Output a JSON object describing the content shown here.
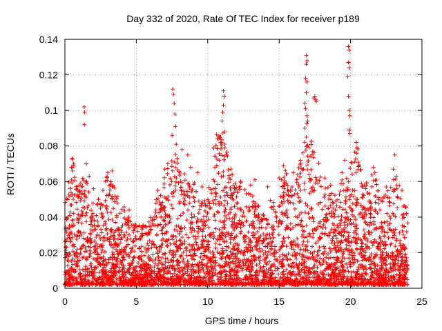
{
  "chart_data": {
    "type": "scatter",
    "title": "Day 332 of 2020, Rate Of TEC Index for receiver p189",
    "xlabel": "GPS time / hours",
    "ylabel": "ROTI / TECUs",
    "xlim": [
      0,
      25
    ],
    "ylim": [
      0,
      0.14
    ],
    "xticks": [
      0,
      5,
      10,
      15,
      20,
      25
    ],
    "yticks": [
      0,
      0.02,
      0.04,
      0.06,
      0.08,
      0.1,
      0.12,
      0.14
    ],
    "xtick_labels": [
      "0",
      "5",
      "10",
      "15",
      "20",
      "25"
    ],
    "ytick_labels": [
      "0",
      "0.02",
      "0.04",
      "0.06",
      "0.08",
      "0.1",
      "0.12",
      "0.14"
    ],
    "grid": true,
    "legend": "none",
    "marker": "plus",
    "color": "#ff0000",
    "activity_envelope": {
      "hours": [
        0,
        0.5,
        1,
        1.5,
        2,
        2.5,
        3,
        3.5,
        4,
        4.5,
        5,
        5.5,
        6,
        6.5,
        7,
        7.5,
        8,
        8.5,
        9,
        9.5,
        10,
        10.5,
        11,
        11.5,
        12,
        12.5,
        13,
        13.5,
        14,
        14.5,
        15,
        15.5,
        16,
        16.5,
        17,
        17.5,
        18,
        18.5,
        19,
        19.5,
        20,
        20.5,
        21,
        21.5,
        22,
        22.5,
        23,
        23.5,
        24
      ],
      "upper_roti": [
        0.045,
        0.07,
        0.055,
        0.065,
        0.05,
        0.05,
        0.063,
        0.055,
        0.045,
        0.04,
        0.033,
        0.035,
        0.038,
        0.05,
        0.06,
        0.08,
        0.065,
        0.06,
        0.058,
        0.045,
        0.05,
        0.08,
        0.09,
        0.065,
        0.06,
        0.055,
        0.05,
        0.048,
        0.045,
        0.05,
        0.06,
        0.065,
        0.055,
        0.07,
        0.09,
        0.075,
        0.06,
        0.055,
        0.05,
        0.06,
        0.07,
        0.075,
        0.06,
        0.065,
        0.055,
        0.05,
        0.06,
        0.055,
        0.045
      ]
    },
    "points": [
      {
        "x": 1.35,
        "y": 0.102
      },
      {
        "x": 1.38,
        "y": 0.099
      },
      {
        "x": 1.36,
        "y": 0.092
      },
      {
        "x": 0.5,
        "y": 0.073
      },
      {
        "x": 0.55,
        "y": 0.066
      },
      {
        "x": 1.5,
        "y": 0.07
      },
      {
        "x": 1.7,
        "y": 0.063
      },
      {
        "x": 2.0,
        "y": 0.056
      },
      {
        "x": 3.0,
        "y": 0.065
      },
      {
        "x": 3.3,
        "y": 0.066
      },
      {
        "x": 3.2,
        "y": 0.058
      },
      {
        "x": 4.5,
        "y": 0.044
      },
      {
        "x": 6.5,
        "y": 0.055
      },
      {
        "x": 7.0,
        "y": 0.067
      },
      {
        "x": 7.2,
        "y": 0.07
      },
      {
        "x": 7.55,
        "y": 0.112
      },
      {
        "x": 7.6,
        "y": 0.109
      },
      {
        "x": 7.65,
        "y": 0.104
      },
      {
        "x": 7.7,
        "y": 0.098
      },
      {
        "x": 7.75,
        "y": 0.091
      },
      {
        "x": 7.5,
        "y": 0.086
      },
      {
        "x": 7.8,
        "y": 0.081
      },
      {
        "x": 8.2,
        "y": 0.078
      },
      {
        "x": 8.6,
        "y": 0.075
      },
      {
        "x": 8.8,
        "y": 0.068
      },
      {
        "x": 9.3,
        "y": 0.065
      },
      {
        "x": 9.6,
        "y": 0.057
      },
      {
        "x": 10.5,
        "y": 0.068
      },
      {
        "x": 10.8,
        "y": 0.072
      },
      {
        "x": 10.9,
        "y": 0.085
      },
      {
        "x": 11.1,
        "y": 0.111
      },
      {
        "x": 11.15,
        "y": 0.108
      },
      {
        "x": 11.1,
        "y": 0.103
      },
      {
        "x": 11.05,
        "y": 0.099
      },
      {
        "x": 11.0,
        "y": 0.094
      },
      {
        "x": 11.2,
        "y": 0.088
      },
      {
        "x": 10.95,
        "y": 0.08
      },
      {
        "x": 11.3,
        "y": 0.075
      },
      {
        "x": 11.5,
        "y": 0.062
      },
      {
        "x": 12.3,
        "y": 0.06
      },
      {
        "x": 13.0,
        "y": 0.058
      },
      {
        "x": 13.3,
        "y": 0.061
      },
      {
        "x": 14.2,
        "y": 0.057
      },
      {
        "x": 15.0,
        "y": 0.062
      },
      {
        "x": 15.3,
        "y": 0.069
      },
      {
        "x": 16.0,
        "y": 0.065
      },
      {
        "x": 16.5,
        "y": 0.072
      },
      {
        "x": 16.9,
        "y": 0.131
      },
      {
        "x": 16.95,
        "y": 0.128
      },
      {
        "x": 16.9,
        "y": 0.126
      },
      {
        "x": 16.85,
        "y": 0.118
      },
      {
        "x": 16.95,
        "y": 0.116
      },
      {
        "x": 16.9,
        "y": 0.11
      },
      {
        "x": 16.8,
        "y": 0.104
      },
      {
        "x": 16.85,
        "y": 0.101
      },
      {
        "x": 16.95,
        "y": 0.097
      },
      {
        "x": 17.0,
        "y": 0.094
      },
      {
        "x": 16.8,
        "y": 0.09
      },
      {
        "x": 16.9,
        "y": 0.085
      },
      {
        "x": 17.1,
        "y": 0.079
      },
      {
        "x": 17.5,
        "y": 0.108
      },
      {
        "x": 17.55,
        "y": 0.106
      },
      {
        "x": 17.45,
        "y": 0.107
      },
      {
        "x": 17.6,
        "y": 0.105
      },
      {
        "x": 17.3,
        "y": 0.075
      },
      {
        "x": 18.2,
        "y": 0.062
      },
      {
        "x": 18.6,
        "y": 0.058
      },
      {
        "x": 19.4,
        "y": 0.065
      },
      {
        "x": 19.6,
        "y": 0.072
      },
      {
        "x": 19.85,
        "y": 0.136
      },
      {
        "x": 19.9,
        "y": 0.134
      },
      {
        "x": 19.85,
        "y": 0.127
      },
      {
        "x": 19.9,
        "y": 0.124
      },
      {
        "x": 19.8,
        "y": 0.119
      },
      {
        "x": 19.85,
        "y": 0.108
      },
      {
        "x": 19.9,
        "y": 0.1
      },
      {
        "x": 19.95,
        "y": 0.097
      },
      {
        "x": 19.9,
        "y": 0.089
      },
      {
        "x": 19.95,
        "y": 0.087
      },
      {
        "x": 20.4,
        "y": 0.082
      },
      {
        "x": 20.45,
        "y": 0.079
      },
      {
        "x": 20.3,
        "y": 0.071
      },
      {
        "x": 21.1,
        "y": 0.058
      },
      {
        "x": 21.6,
        "y": 0.068
      },
      {
        "x": 21.7,
        "y": 0.065
      },
      {
        "x": 22.5,
        "y": 0.057
      },
      {
        "x": 23.0,
        "y": 0.067
      },
      {
        "x": 23.1,
        "y": 0.075
      },
      {
        "x": 23.2,
        "y": 0.063
      },
      {
        "x": 23.6,
        "y": 0.055
      }
    ]
  }
}
